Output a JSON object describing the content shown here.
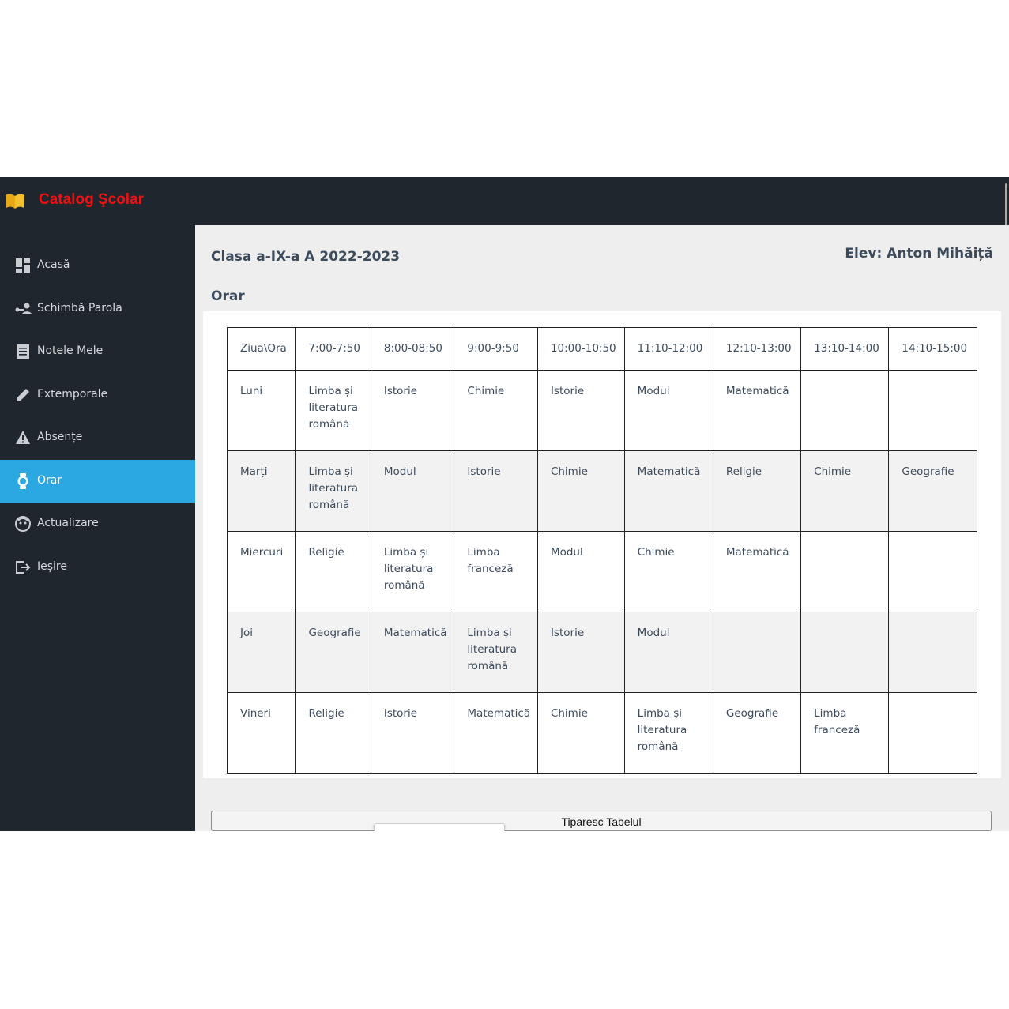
{
  "app": {
    "brand": "Catalog Şcolar",
    "logo_icon": "book-icon"
  },
  "colors": {
    "topbar": "#1f262e",
    "sidebar": "#1f262e",
    "active": "#2ba7e2",
    "brand": "#ee1111",
    "text": "#3c4b5c"
  },
  "sidebar": {
    "items": [
      {
        "label": "Acasă",
        "icon": "dashboard-icon",
        "active": false
      },
      {
        "label": "Schimbă Parola",
        "icon": "user-key-icon",
        "active": false
      },
      {
        "label": "Notele Mele",
        "icon": "notes-icon",
        "active": false
      },
      {
        "label": "Extemporale",
        "icon": "pencil-icon",
        "active": false
      },
      {
        "label": "Absențe",
        "icon": "warning-icon",
        "active": false
      },
      {
        "label": "Orar",
        "icon": "watch-icon",
        "active": true
      },
      {
        "label": "Actualizare",
        "icon": "face-icon",
        "active": false
      },
      {
        "label": "Ieșire",
        "icon": "logout-icon",
        "active": false
      }
    ]
  },
  "main": {
    "class_title": "Clasa a-IX-a A 2022-2023",
    "student": "Elev: Anton Mihăiță",
    "section_title": "Orar",
    "print_button": "Tiparesc Tabelul"
  },
  "schedule": {
    "headers": [
      "Ziua\\Ora",
      "7:00-7:50",
      "8:00-08:50",
      "9:00-9:50",
      "10:00-10:50",
      "11:10-12:00",
      "12:10-13:00",
      "13:10-14:00",
      "14:10-15:00"
    ],
    "rows": [
      [
        "Luni",
        "Limba și literatura română",
        "Istorie",
        "Chimie",
        "Istorie",
        "Modul",
        "Matematică",
        "",
        ""
      ],
      [
        "Marți",
        "Limba și literatura română",
        "Modul",
        "Istorie",
        "Chimie",
        "Matematică",
        "Religie",
        "Chimie",
        "Geografie"
      ],
      [
        "Miercuri",
        "Religie",
        "Limba și literatura română",
        "Limba franceză",
        "Modul",
        "Chimie",
        "Matematică",
        "",
        ""
      ],
      [
        "Joi",
        "Geografie",
        "Matematică",
        "Limba și literatura română",
        "Istorie",
        "Modul",
        "",
        "",
        ""
      ],
      [
        "Vineri",
        "Religie",
        "Istorie",
        "Matematică",
        "Chimie",
        "Limba și literatura română",
        "Geografie",
        "Limba franceză",
        ""
      ]
    ]
  }
}
